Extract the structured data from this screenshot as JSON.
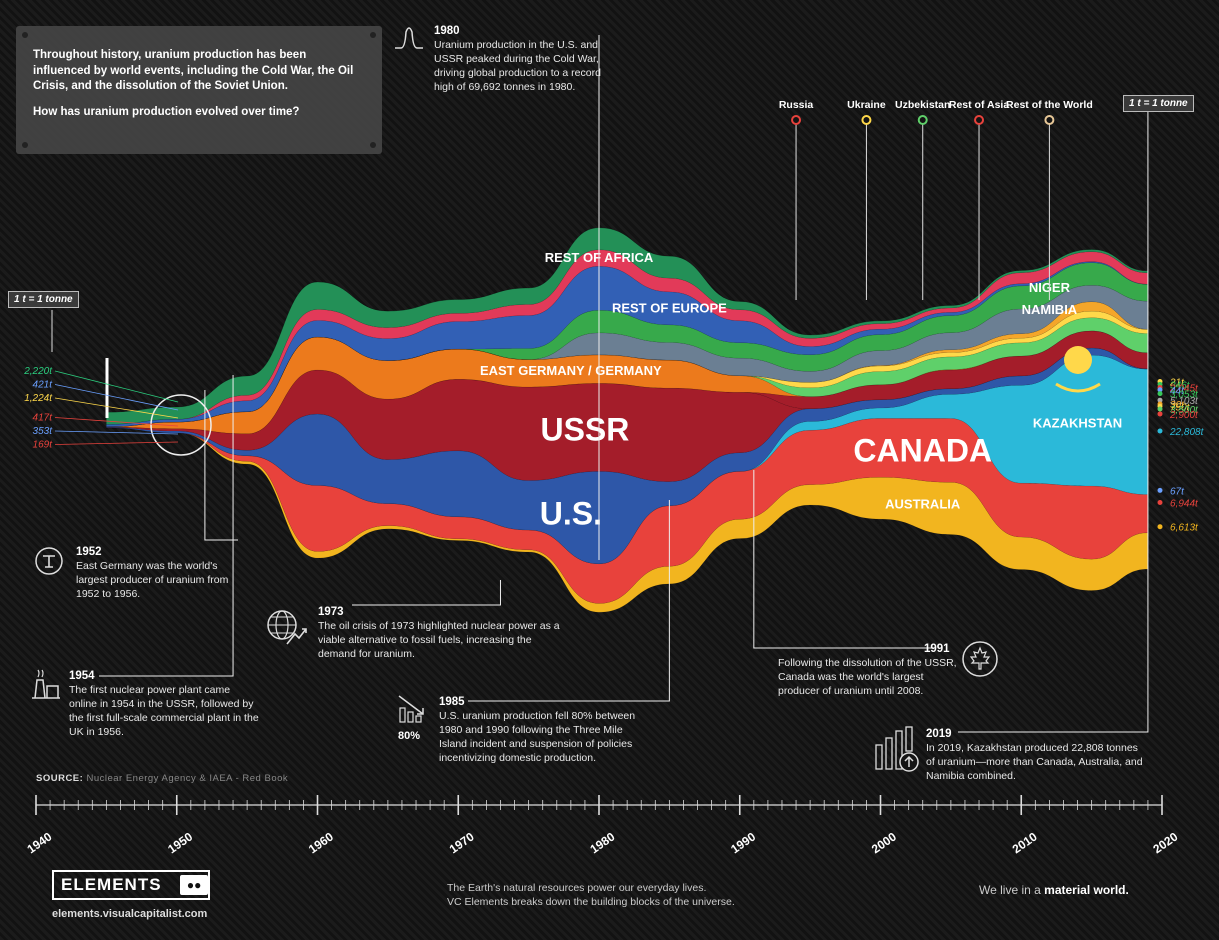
{
  "intro": {
    "text": "Throughout history, uranium production has been influenced by world events, including the Cold War, the Oil Crisis, and the dissolution of the Soviet Union.",
    "question": "How has uranium production evolved over time?"
  },
  "unit_label": "1 t = 1 tonne",
  "annotations": {
    "a1980": {
      "year": "1980",
      "text": "Uranium production in the U.S. and USSR peaked during the Cold War, driving global production to a record high of 69,692 tonnes in 1980."
    },
    "a1952": {
      "year": "1952",
      "text": "East Germany was the world's largest producer of uranium from 1952 to 1956."
    },
    "a1954": {
      "year": "1954",
      "text": "The first nuclear power plant came online in 1954 in the USSR, followed by the first full-scale commercial plant in the UK in 1956."
    },
    "a1973": {
      "year": "1973",
      "text": "The oil crisis of 1973 highlighted nuclear power as a viable alternative to fossil fuels, increasing the demand for uranium."
    },
    "a1985": {
      "year": "1985",
      "text": "U.S. uranium production fell 80% between 1980 and 1990 following the Three Mile Island incident and suspension of policies incentivizing domestic production.",
      "badge": "80%"
    },
    "a1991": {
      "year": "1991",
      "text": "Following the dissolution of the USSR, Canada was the world's largest producer of uranium until 2008."
    },
    "a2019": {
      "year": "2019",
      "text": "In 2019, Kazakhstan produced 22,808 tonnes of uranium—more than Canada, Australia, and Namibia combined."
    }
  },
  "source_label": "SOURCE:",
  "source_text": "Nuclear Energy Agency & IAEA - Red Book",
  "footer": {
    "logo": "ELEMENTS",
    "url": "elements.visualcapitalist.com",
    "tagline1": "The Earth's natural resources power our everyday lives.",
    "tagline2": "VC Elements breaks down the building blocks of the universe.",
    "material_pre": "We live in a",
    "material_bold": "material world."
  },
  "chart_data": {
    "type": "area",
    "xlabel": "",
    "ylabel": "",
    "x": [
      1945,
      1950,
      1955,
      1960,
      1965,
      1970,
      1975,
      1980,
      1985,
      1990,
      1995,
      2000,
      2005,
      2010,
      2015,
      2019
    ],
    "xlim": [
      1940,
      2020
    ],
    "x_ticks": [
      "1940",
      "1950",
      "1960",
      "1970",
      "1980",
      "1990",
      "2000",
      "2010",
      "2020"
    ],
    "series": [
      {
        "name": "Australia",
        "color": "#f2b51f",
        "values": [
          0,
          0,
          500,
          1200,
          600,
          300,
          400,
          1600,
          3200,
          3500,
          3700,
          7600,
          9500,
          5900,
          5700,
          6613
        ]
      },
      {
        "name": "Canada",
        "color": "#e8423c",
        "values": [
          0,
          0,
          1000,
          12000,
          4000,
          4000,
          3600,
          7200,
          11000,
          8700,
          9900,
          10700,
          11600,
          9800,
          13300,
          6944
        ]
      },
      {
        "name": "Kazakhstan",
        "color": "#2bb9d9",
        "values": [
          0,
          0,
          0,
          0,
          0,
          0,
          0,
          0,
          0,
          0,
          1600,
          1900,
          4400,
          17800,
          23800,
          22808
        ]
      },
      {
        "name": "U.S.",
        "color": "#2e57a8",
        "values": [
          100,
          353,
          1000,
          13000,
          8000,
          12000,
          9000,
          16800,
          4400,
          3400,
          2300,
          1500,
          1000,
          1700,
          1300,
          67
        ]
      },
      {
        "name": "USSR",
        "color": "#a41d2a",
        "values": [
          50,
          417,
          3000,
          8000,
          11000,
          13000,
          17000,
          16000,
          17000,
          11000,
          0,
          0,
          0,
          0,
          0,
          0
        ]
      },
      {
        "name": "Russia",
        "color": "#a41d2a",
        "values": [
          0,
          0,
          0,
          0,
          0,
          0,
          0,
          0,
          0,
          0,
          2200,
          2700,
          3400,
          3600,
          3100,
          2900
        ]
      },
      {
        "name": "East Germany / Germany",
        "color": "#ec7a1c",
        "values": [
          50,
          1224,
          4000,
          6000,
          7000,
          5500,
          5000,
          5200,
          5100,
          3000,
          10,
          30,
          90,
          10,
          0,
          0
        ]
      },
      {
        "name": "Uzbekistan",
        "color": "#5fd06a",
        "values": [
          0,
          0,
          0,
          0,
          0,
          0,
          0,
          0,
          0,
          0,
          1600,
          2400,
          2300,
          2400,
          2400,
          3500
        ]
      },
      {
        "name": "Ukraine",
        "color": "#ffd84a",
        "values": [
          0,
          0,
          0,
          0,
          0,
          0,
          0,
          0,
          0,
          0,
          1000,
          1000,
          800,
          850,
          1200,
          750
        ]
      },
      {
        "name": "Rest of Asia",
        "color": "#f4a62a",
        "values": [
          0,
          0,
          0,
          0,
          0,
          0,
          0,
          0,
          0,
          0,
          0,
          100,
          500,
          800,
          1700,
          30
        ]
      },
      {
        "name": "Namibia",
        "color": "#6b7f93",
        "values": [
          0,
          0,
          0,
          0,
          0,
          0,
          0,
          4000,
          3200,
          3200,
          2000,
          2700,
          3100,
          4500,
          3000,
          5103
        ]
      },
      {
        "name": "Niger",
        "color": "#37a94b",
        "values": [
          0,
          0,
          0,
          0,
          0,
          0,
          2000,
          4100,
          3200,
          2800,
          3000,
          2900,
          3100,
          4200,
          4100,
          3053
        ]
      },
      {
        "name": "Rest of Europe",
        "color": "#3260b5",
        "values": [
          421,
          500,
          2000,
          3000,
          4000,
          5000,
          6000,
          8000,
          6000,
          4000,
          1500,
          1000,
          600,
          400,
          200,
          44
        ]
      },
      {
        "name": "Rest of Africa",
        "color": "#e23a59",
        "values": [
          0,
          0,
          1000,
          2000,
          2000,
          1500,
          2000,
          3000,
          2500,
          2000,
          1500,
          1000,
          800,
          2000,
          1800,
          2045
        ]
      },
      {
        "name": "Rest of the World",
        "color": "#239057",
        "values": [
          2220,
          2220,
          3500,
          5000,
          3000,
          2500,
          3000,
          4000,
          4000,
          1500,
          600,
          500,
          450,
          400,
          400,
          346
        ]
      },
      {
        "name": "",
        "color": "#c94b7b",
        "values": [
          0,
          0,
          0,
          0,
          0,
          0,
          0,
          0,
          0,
          0,
          0,
          0,
          0,
          0,
          0,
          21
        ]
      }
    ],
    "area_labels": [
      {
        "text": "REST OF AFRICA",
        "series": "Rest of Africa",
        "x": 1980
      },
      {
        "text": "REST OF EUROPE",
        "series": "Rest of Europe",
        "x": 1985
      },
      {
        "text": "EAST GERMANY / GERMANY",
        "series": "East Germany / Germany",
        "x": 1978
      },
      {
        "text": "USSR",
        "series": "USSR",
        "x": 1979
      },
      {
        "text": "U.S.",
        "series": "U.S.",
        "x": 1978
      },
      {
        "text": "CANADA",
        "series": "Canada",
        "x": 2003
      },
      {
        "text": "AUSTRALIA",
        "series": "Australia",
        "x": 2003
      },
      {
        "text": "KAZAKHSTAN",
        "series": "Kazakhstan",
        "x": 2014
      },
      {
        "text": "NIGER",
        "series": "Niger",
        "x": 2012
      },
      {
        "text": "NAMIBIA",
        "series": "Namibia",
        "x": 2012
      }
    ],
    "top_labels": [
      {
        "text": "Russia",
        "color": "#e8423c",
        "x": 1994
      },
      {
        "text": "Ukraine",
        "color": "#ffd84a",
        "x": 1999
      },
      {
        "text": "Uzbekistan",
        "color": "#5fd06a",
        "x": 2003
      },
      {
        "text": "Rest of Asia",
        "color": "#e8423c",
        "x": 2007
      },
      {
        "text": "Rest of the World",
        "color": "#e8c898",
        "x": 2012
      }
    ],
    "values_1952": [
      {
        "text": "2,220t",
        "color": "#2bcf7f"
      },
      {
        "text": "421t",
        "color": "#6aa0ff"
      },
      {
        "text": "1,224t",
        "color": "#ffd84a"
      },
      {
        "text": "417t",
        "color": "#e8423c"
      },
      {
        "text": "353t",
        "color": "#6aa0ff"
      },
      {
        "text": "169t",
        "color": "#e8423c"
      }
    ],
    "values_2019": [
      {
        "text": "21t",
        "color": "#ffd84a",
        "y": 7000
      },
      {
        "text": "346t",
        "color": "#37c85a",
        "y": 6480
      },
      {
        "text": "2,045t",
        "color": "#e8423c",
        "y": 5920
      },
      {
        "text": "44t",
        "color": "#6aa0ff",
        "y": 5500
      },
      {
        "text": "3,053t",
        "color": "#37c85a",
        "y": 4800
      },
      {
        "text": "5,103t",
        "color": "#aaaaaa",
        "y": 3600
      },
      {
        "text": "30t",
        "color": "#f4a62a",
        "y": 2900
      },
      {
        "text": "750t",
        "color": "#ffd84a",
        "y": 2500
      },
      {
        "text": "3,500t",
        "color": "#5fd06a",
        "y": 2000
      },
      {
        "text": "2,900t",
        "color": "#e8423c",
        "y": 1100
      },
      {
        "text": "22,808t",
        "color": "#2bb9d9",
        "y": -2000
      },
      {
        "text": "67t",
        "color": "#6aa0ff",
        "y": -12800
      },
      {
        "text": "6,944t",
        "color": "#e8423c",
        "y": -15000
      },
      {
        "text": "6,613t",
        "color": "#f2b51f",
        "y": -19400
      }
    ]
  }
}
